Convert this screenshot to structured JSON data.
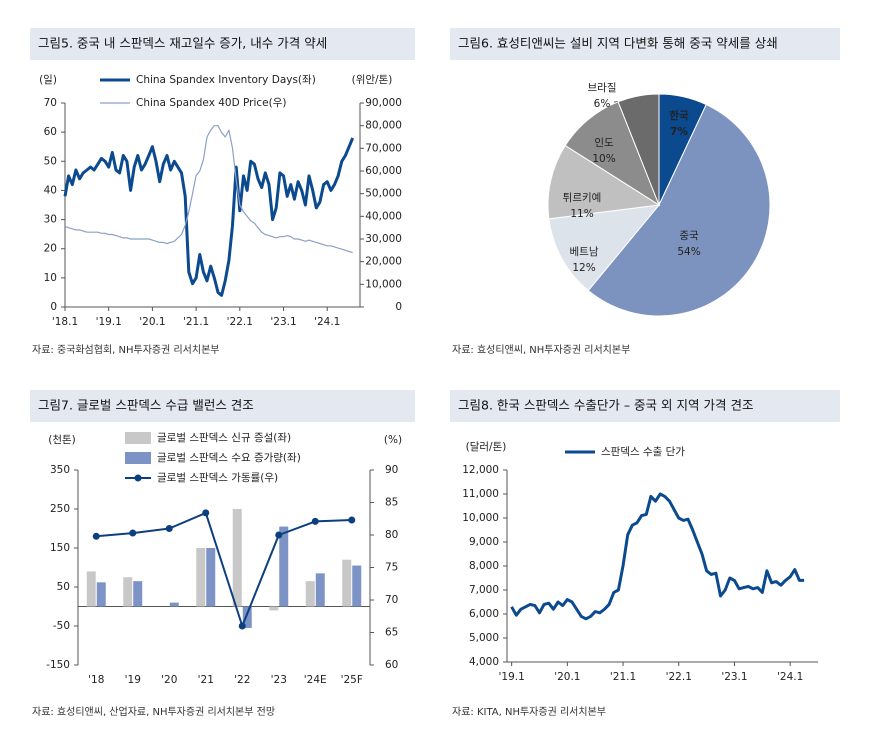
{
  "chart_data": [
    {
      "type": "line",
      "title": "그림5. 중국 내 스판덱스 재고일수 증가, 내수 가격 약세",
      "source": "자료: 중국화섬협회, NH투자증권 리서치본부",
      "y_unit": "(일)",
      "y2_unit": "(위안/톤)",
      "x": [
        "2018-01",
        "2018-02",
        "2018-03",
        "2018-04",
        "2018-05",
        "2018-06",
        "2018-07",
        "2018-08",
        "2018-09",
        "2018-10",
        "2018-11",
        "2018-12",
        "2019-01",
        "2019-02",
        "2019-03",
        "2019-04",
        "2019-05",
        "2019-06",
        "2019-07",
        "2019-08",
        "2019-09",
        "2019-10",
        "2019-11",
        "2019-12",
        "2020-01",
        "2020-02",
        "2020-03",
        "2020-04",
        "2020-05",
        "2020-06",
        "2020-07",
        "2020-08",
        "2020-09",
        "2020-10",
        "2020-11",
        "2020-12",
        "2021-01",
        "2021-02",
        "2021-03",
        "2021-04",
        "2021-05",
        "2021-06",
        "2021-07",
        "2021-08",
        "2021-09",
        "2021-10",
        "2021-11",
        "2021-12",
        "2022-01",
        "2022-02",
        "2022-03",
        "2022-04",
        "2022-05",
        "2022-06",
        "2022-07",
        "2022-08",
        "2022-09",
        "2022-10",
        "2022-11",
        "2022-12",
        "2023-01",
        "2023-02",
        "2023-03",
        "2023-04",
        "2023-05",
        "2023-06",
        "2023-07",
        "2023-08",
        "2023-09",
        "2023-10",
        "2023-11",
        "2023-12",
        "2024-01",
        "2024-02",
        "2024-03",
        "2024-04",
        "2024-05",
        "2024-06",
        "2024-07",
        "2024-08"
      ],
      "xlim": [
        "2018-01",
        "2024-10"
      ],
      "xticks": [
        {
          "value": "2018-01",
          "label": "'18.1"
        },
        {
          "value": "2019-01",
          "label": "'19.1"
        },
        {
          "value": "2020-01",
          "label": "'20.1"
        },
        {
          "value": "2021-01",
          "label": "'21.1"
        },
        {
          "value": "2022-01",
          "label": "'22.1"
        },
        {
          "value": "2023-01",
          "label": "'23.1"
        },
        {
          "value": "2024-01",
          "label": "'24.1"
        }
      ],
      "ylim": [
        0,
        70
      ],
      "yticks": [
        0,
        10,
        20,
        30,
        40,
        50,
        60,
        70
      ],
      "y2lim": [
        0,
        90000
      ],
      "y2ticks": [
        0,
        {
          "value": 10000,
          "label": "10,000"
        },
        {
          "value": 20000,
          "label": "20,000"
        },
        {
          "value": 30000,
          "label": "30,000"
        },
        {
          "value": 40000,
          "label": "40,000"
        },
        {
          "value": 50000,
          "label": "50,000"
        },
        {
          "value": 60000,
          "label": "60,000"
        },
        {
          "value": 70000,
          "label": "70,000"
        },
        {
          "value": 80000,
          "label": "80,000"
        },
        {
          "value": 90000,
          "label": "90,000"
        }
      ],
      "series": [
        {
          "name": "China Spandex Inventory Days(좌)",
          "color": "#0b4a8f",
          "values": [
            38,
            45,
            42,
            47,
            44,
            46,
            47,
            48,
            47,
            49,
            51,
            50,
            48,
            53,
            47,
            46,
            52,
            50,
            40,
            48,
            52,
            47,
            49,
            52,
            55,
            50,
            43,
            49,
            52,
            47,
            50,
            48,
            46,
            38,
            12,
            8,
            10,
            18,
            12,
            9,
            14,
            10,
            5,
            4,
            9,
            16,
            28,
            48,
            33,
            45,
            40,
            50,
            49,
            44,
            41,
            46,
            42,
            30,
            34,
            46,
            45,
            38,
            42,
            37,
            43,
            40,
            35,
            45,
            40,
            34,
            36,
            42,
            43,
            40,
            42,
            45,
            50,
            52,
            55,
            58
          ]
        },
        {
          "name": "China Spandex 40D Price(우)",
          "color": "#8ba0c8",
          "axis": "y2",
          "values": [
            35500,
            35000,
            34500,
            34000,
            34000,
            33500,
            33000,
            33000,
            33000,
            33000,
            32500,
            32500,
            32000,
            32000,
            31500,
            31000,
            30500,
            30500,
            30000,
            30000,
            30000,
            30000,
            30000,
            30000,
            29500,
            29000,
            28500,
            28500,
            28000,
            28500,
            29000,
            30500,
            32000,
            36000,
            42000,
            50000,
            58000,
            60000,
            65000,
            75000,
            78000,
            80000,
            80000,
            77000,
            75000,
            78000,
            70000,
            56000,
            45000,
            42000,
            40000,
            38000,
            37000,
            35000,
            33000,
            32000,
            31500,
            31000,
            30500,
            31000,
            31000,
            31500,
            31000,
            30000,
            30000,
            29500,
            29000,
            29500,
            29000,
            28500,
            28000,
            27500,
            27000,
            27000,
            26500,
            26000,
            25500,
            25000,
            24500,
            24000
          ]
        }
      ]
    },
    {
      "type": "pie",
      "title": "그림6. 효성티앤씨는 설비 지역 다변화 통해 중국 약세를 상쇄",
      "source": "자료: 효성티앤씨, NH투자증권 리서치본부",
      "categories": [
        "한국",
        "중국",
        "베트남",
        "튀르키예",
        "인도",
        "브라질"
      ],
      "values": [
        7,
        54,
        12,
        11,
        10,
        6
      ],
      "value_labels": [
        "7%",
        "54%",
        "12%",
        "11%",
        "10%",
        "6%"
      ],
      "colors": [
        "#0b4a8f",
        "#7d93bf",
        "#dde3ea",
        "#c0c0c0",
        "#8c8c8c",
        "#6b6b6b"
      ]
    },
    {
      "type": "combo",
      "title": "그림7. 글로벌 스판덱스 수급 밸런스 견조",
      "source": "자료: 효성티앤씨, 산업자료, NH투자증권 리서치본부 전망",
      "y_unit": "(천톤)",
      "y2_unit": "(%)",
      "categories": [
        "'18",
        "'19",
        "'20",
        "'21",
        "'22",
        "'23",
        "'24E",
        "'25F"
      ],
      "ylim": [
        -150,
        350
      ],
      "yticks": [
        -150,
        -50,
        50,
        150,
        250,
        350
      ],
      "y2lim": [
        60,
        90
      ],
      "y2ticks": [
        60,
        65,
        70,
        75,
        80,
        85,
        90
      ],
      "series": [
        {
          "name": "글로벌 스판덱스 신규 증설(좌)",
          "type": "bar",
          "color": "#c8c8c8",
          "values": [
            90,
            75,
            0,
            150,
            250,
            -10,
            65,
            120
          ]
        },
        {
          "name": "글로벌 스판덱스 수요 증가량(좌)",
          "type": "bar",
          "color": "#7d93c5",
          "values": [
            62,
            65,
            10,
            150,
            -55,
            205,
            85,
            105
          ]
        },
        {
          "name": "글로벌 스판덱스 가동률(우)",
          "type": "line",
          "axis": "y2",
          "color": "#0b3f7f",
          "values": [
            79.8,
            80.3,
            81.0,
            83.4,
            66.0,
            80.0,
            82.1,
            82.3
          ]
        }
      ]
    },
    {
      "type": "line",
      "title": "그림8. 한국 스판덱스 수출단가 – 중국 외 지역 가격 견조",
      "source": "자료: KITA, NH투자증권 리서치본부",
      "y_unit": "(달러/톤)",
      "x": [
        "2019-01",
        "2019-02",
        "2019-03",
        "2019-04",
        "2019-05",
        "2019-06",
        "2019-07",
        "2019-08",
        "2019-09",
        "2019-10",
        "2019-11",
        "2019-12",
        "2020-01",
        "2020-02",
        "2020-03",
        "2020-04",
        "2020-05",
        "2020-06",
        "2020-07",
        "2020-08",
        "2020-09",
        "2020-10",
        "2020-11",
        "2020-12",
        "2021-01",
        "2021-02",
        "2021-03",
        "2021-04",
        "2021-05",
        "2021-06",
        "2021-07",
        "2021-08",
        "2021-09",
        "2021-10",
        "2021-11",
        "2021-12",
        "2022-01",
        "2022-02",
        "2022-03",
        "2022-04",
        "2022-05",
        "2022-06",
        "2022-07",
        "2022-08",
        "2022-09",
        "2022-10",
        "2022-11",
        "2022-12",
        "2023-01",
        "2023-02",
        "2023-03",
        "2023-04",
        "2023-05",
        "2023-06",
        "2023-07",
        "2023-08",
        "2023-09",
        "2023-10",
        "2023-11",
        "2023-12",
        "2024-01",
        "2024-02",
        "2024-03",
        "2024-04"
      ],
      "xlim": [
        "2018-12",
        "2024-07"
      ],
      "xticks": [
        {
          "value": "2019-01",
          "label": "'19.1"
        },
        {
          "value": "2020-01",
          "label": "'20.1"
        },
        {
          "value": "2021-01",
          "label": "'21.1"
        },
        {
          "value": "2022-01",
          "label": "'22.1"
        },
        {
          "value": "2023-01",
          "label": "'23.1"
        },
        {
          "value": "2024-01",
          "label": "'24.1"
        }
      ],
      "ylim": [
        4000,
        12000
      ],
      "yticks": [
        {
          "value": 4000,
          "label": "4,000"
        },
        {
          "value": 5000,
          "label": "5,000"
        },
        {
          "value": 6000,
          "label": "6,000"
        },
        {
          "value": 7000,
          "label": "7,000"
        },
        {
          "value": 8000,
          "label": "8,000"
        },
        {
          "value": 9000,
          "label": "9,000"
        },
        {
          "value": 10000,
          "label": "10,000"
        },
        {
          "value": 11000,
          "label": "11,000"
        },
        {
          "value": 12000,
          "label": "12,000"
        }
      ],
      "series": [
        {
          "name": "스판덱스 수출 단가",
          "color": "#0b4a8f",
          "values": [
            6300,
            5950,
            6200,
            6300,
            6400,
            6350,
            6050,
            6400,
            6450,
            6200,
            6500,
            6350,
            6600,
            6500,
            6200,
            5900,
            5800,
            5900,
            6100,
            6050,
            6200,
            6400,
            6900,
            7000,
            8000,
            9300,
            9700,
            9800,
            10100,
            10150,
            10900,
            10700,
            11000,
            10900,
            10700,
            10350,
            10000,
            9900,
            9950,
            9500,
            9000,
            8500,
            7800,
            7650,
            7700,
            6750,
            7000,
            7500,
            7400,
            7050,
            7100,
            7150,
            7050,
            7100,
            6900,
            7800,
            7300,
            7350,
            7200,
            7400,
            7550,
            7850,
            7400,
            7400
          ]
        }
      ]
    }
  ]
}
